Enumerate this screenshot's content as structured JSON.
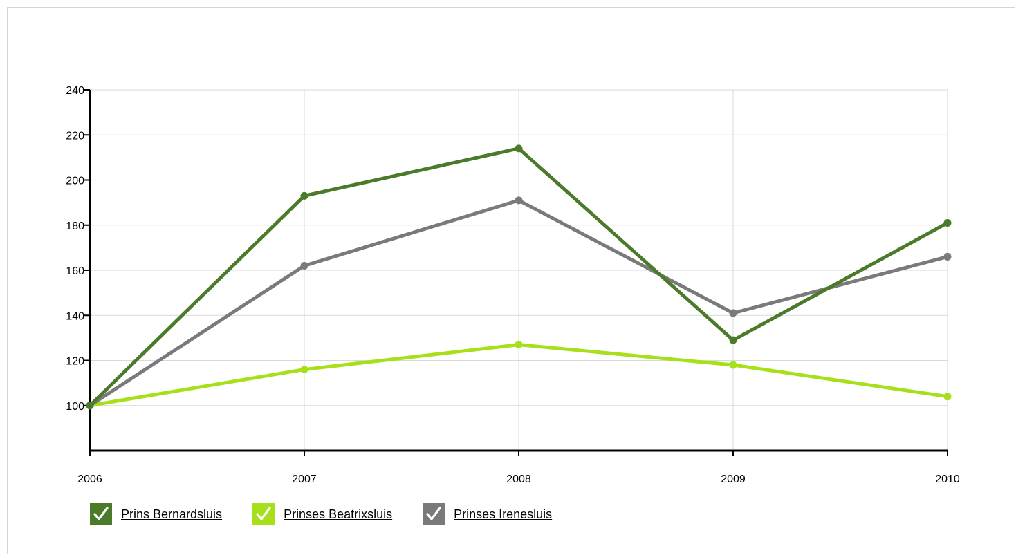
{
  "chart_data": {
    "type": "line",
    "x": [
      "2006",
      "2007",
      "2008",
      "2009",
      "2010"
    ],
    "ylim": [
      80,
      240
    ],
    "yticks": [
      "100",
      "120",
      "140",
      "160",
      "180",
      "200",
      "220",
      "240"
    ],
    "grid": true,
    "legend_position": "bottom-left",
    "series": [
      {
        "name": "Prins Bernardsluis",
        "color": "#4a7a2a",
        "values": [
          100,
          193,
          214,
          129,
          181
        ]
      },
      {
        "name": "Prinses Beatrixsluis",
        "color": "#a6e01a",
        "values": [
          100,
          116,
          127,
          118,
          104
        ]
      },
      {
        "name": "Prinses Irenesluis",
        "color": "#7a7a7a",
        "values": [
          100,
          162,
          191,
          141,
          166
        ]
      }
    ]
  },
  "legend": {
    "items": [
      {
        "label": "Prins Bernardsluis",
        "color": "#4a7a2a",
        "icon": "checkmark-icon",
        "checked": true
      },
      {
        "label": "Prinses Beatrixsluis",
        "color": "#a6e01a",
        "icon": "checkmark-icon",
        "checked": true
      },
      {
        "label": "Prinses Irenesluis",
        "color": "#7a7a7a",
        "icon": "checkmark-icon",
        "checked": true
      }
    ]
  }
}
